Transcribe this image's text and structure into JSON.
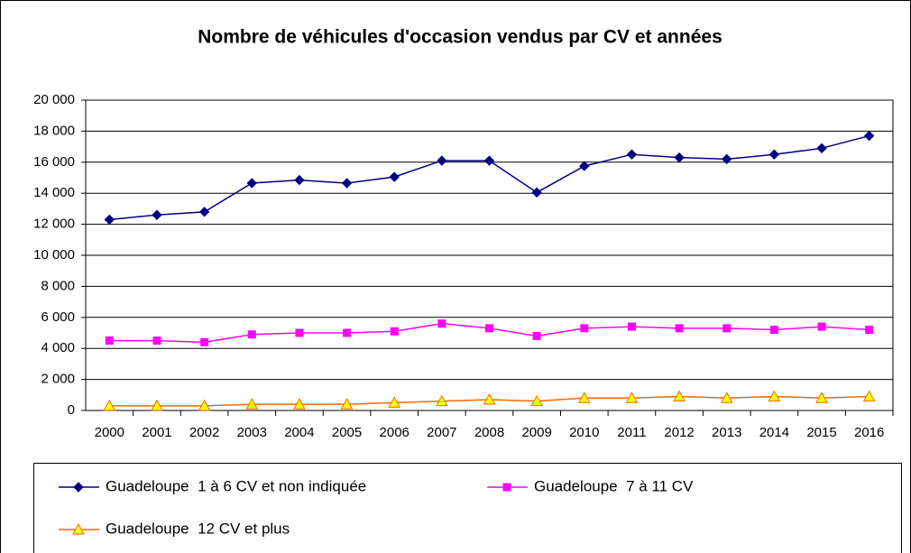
{
  "chart_data": {
    "type": "line",
    "title": "Nombre de véhicules d'occasion vendus par CV et années",
    "categories": [
      "2000",
      "2001",
      "2002",
      "2003",
      "2004",
      "2005",
      "2006",
      "2007",
      "2008",
      "2009",
      "2010",
      "2011",
      "2012",
      "2013",
      "2014",
      "2015",
      "2016"
    ],
    "series": [
      {
        "name": "Guadeloupe  1 à 6 CV et non indiquée",
        "color": "#000080",
        "marker": "diamond",
        "marker_fill": "#000080",
        "values": [
          12300,
          12600,
          12800,
          14650,
          14850,
          14650,
          15050,
          16100,
          16100,
          14050,
          15750,
          16500,
          16300,
          16200,
          16500,
          16900,
          17700
        ]
      },
      {
        "name": "Guadeloupe  7 à 11 CV",
        "color": "#ff00ff",
        "marker": "square",
        "marker_fill": "#ff00ff",
        "values": [
          4500,
          4500,
          4400,
          4900,
          5000,
          5000,
          5100,
          5600,
          5300,
          4800,
          5300,
          5400,
          5300,
          5300,
          5200,
          5400,
          5200
        ]
      },
      {
        "name": "Guadeloupe  12 CV et plus",
        "color": "#ff6600",
        "marker": "triangle",
        "marker_fill": "#ffff00",
        "values": [
          300,
          300,
          300,
          400,
          400,
          400,
          500,
          600,
          700,
          600,
          800,
          800,
          900,
          800,
          900,
          800,
          900
        ]
      }
    ],
    "ylim": [
      0,
      20000
    ],
    "yticks": [
      0,
      {
        "value": 2000,
        "label": "2 000"
      },
      {
        "value": 4000,
        "label": "4 000"
      },
      {
        "value": 6000,
        "label": "6 000"
      },
      {
        "value": 8000,
        "label": "8 000"
      },
      {
        "value": 10000,
        "label": "10 000"
      },
      {
        "value": 12000,
        "label": "12 000"
      },
      {
        "value": 14000,
        "label": "14 000"
      },
      {
        "value": 16000,
        "label": "16 000"
      },
      {
        "value": 18000,
        "label": "18 000"
      },
      {
        "value": 20000,
        "label": "20 000"
      }
    ],
    "grid": true
  }
}
